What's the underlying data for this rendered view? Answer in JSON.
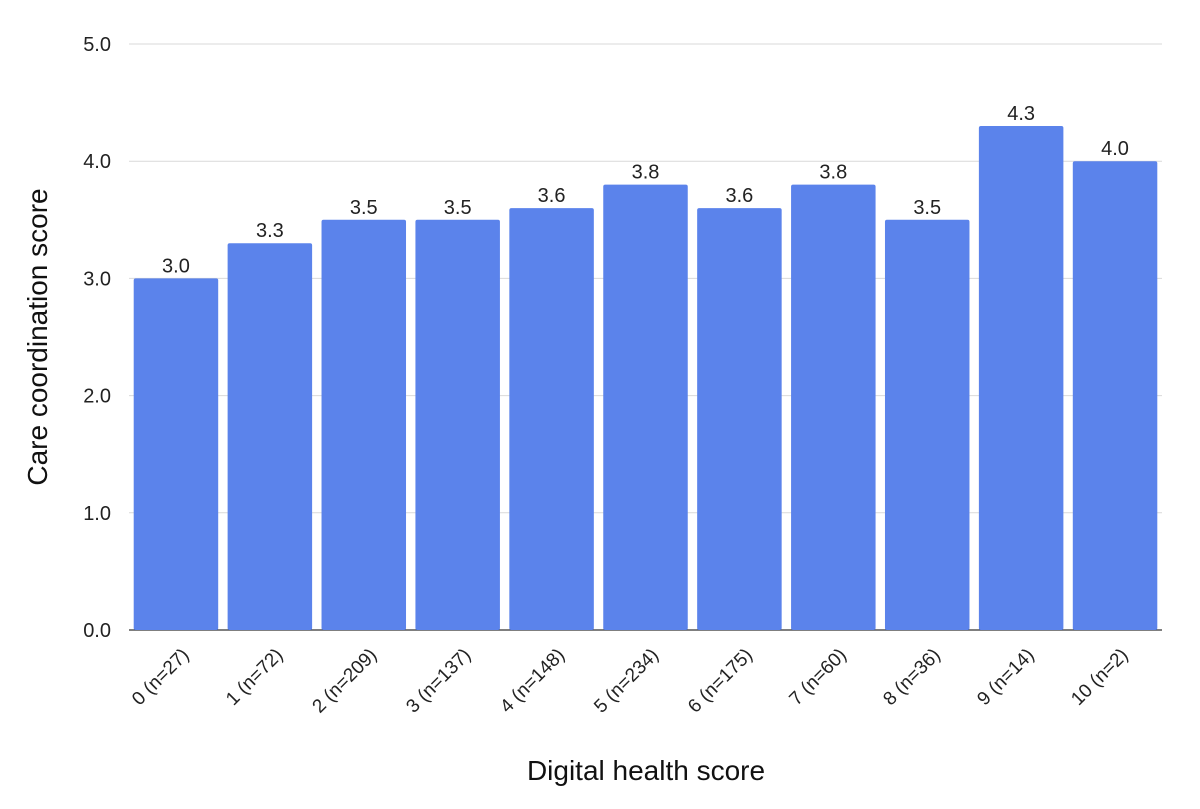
{
  "chart_data": {
    "type": "bar",
    "xlabel": "Digital health score",
    "ylabel": "Care coordination score",
    "ylim": [
      0,
      5
    ],
    "yticks": [
      "0.0",
      "1.0",
      "2.0",
      "3.0",
      "4.0",
      "5.0"
    ],
    "grid": true,
    "legend": "none",
    "bar_color": "#5b83eb",
    "categories": [
      "0 (n=27)",
      "1 (n=72)",
      "2 (n=209)",
      "3 (n=137)",
      "4 (n=148)",
      "5 (n=234)",
      "6 (n=175)",
      "7 (n=60)",
      "8 (n=36)",
      "9 (n=14)",
      "10 (n=2)"
    ],
    "values": [
      3.0,
      3.3,
      3.5,
      3.5,
      3.6,
      3.8,
      3.6,
      3.8,
      3.5,
      4.3,
      4.0
    ],
    "data_labels": [
      "3.0",
      "3.3",
      "3.5",
      "3.5",
      "3.6",
      "3.8",
      "3.6",
      "3.8",
      "3.5",
      "4.3",
      "4.0"
    ]
  }
}
